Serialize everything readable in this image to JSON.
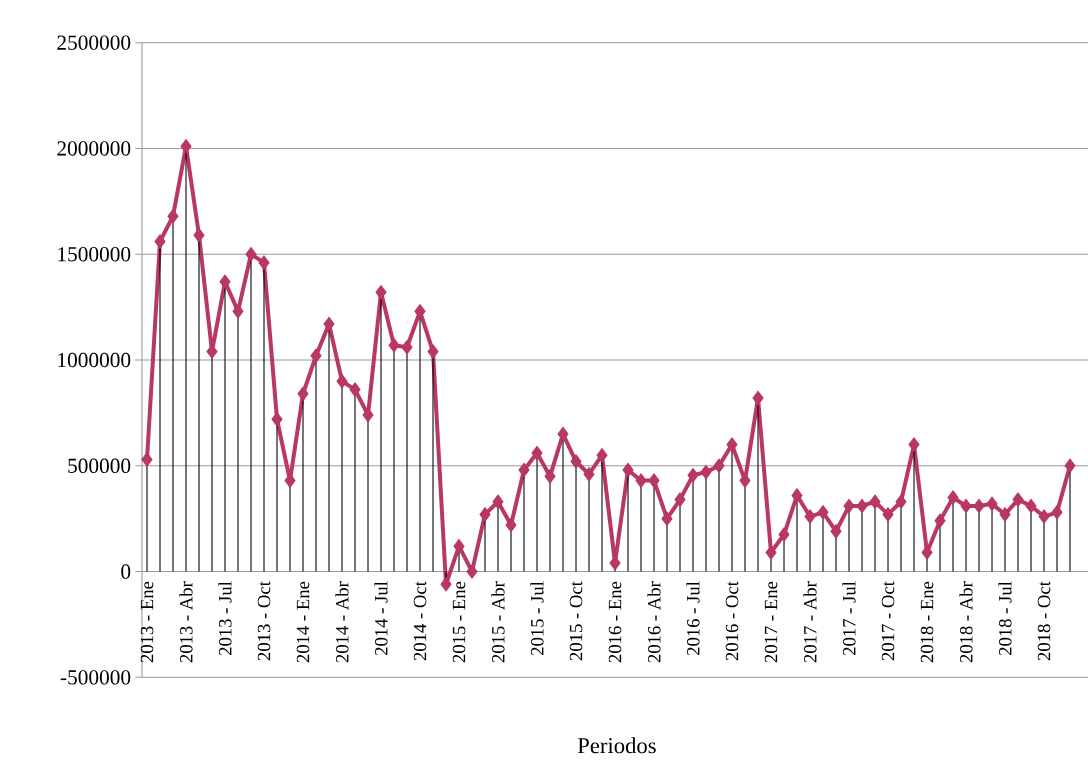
{
  "chart_data": {
    "type": "line",
    "xlabel": "Periodos",
    "categories": [
      "2013 - Ene",
      null,
      null,
      "2013 - Abr",
      null,
      null,
      "2013 - Jul",
      null,
      null,
      "2013 - Oct",
      null,
      null,
      "2014 - Ene",
      null,
      null,
      "2014 - Abr",
      null,
      null,
      "2014 - Jul",
      null,
      null,
      "2014 - Oct",
      null,
      null,
      "2015 - Ene",
      null,
      null,
      "2015 - Abr",
      null,
      null,
      "2015 - Jul",
      null,
      null,
      "2015 - Oct",
      null,
      null,
      "2016 - Ene",
      null,
      null,
      "2016 - Abr",
      null,
      null,
      "2016 - Jul",
      null,
      null,
      "2016 - Oct",
      null,
      null,
      "2017 - Ene",
      null,
      null,
      "2017 - Abr",
      null,
      null,
      "2017 - Jul",
      null,
      null,
      "2017 - Oct",
      null,
      null,
      "2018 - Ene",
      null,
      null,
      "2018 - Abr",
      null,
      null,
      "2018 - Jul",
      null,
      null,
      "2018 - Oct",
      null,
      null
    ],
    "series": [
      {
        "type": "lollipop",
        "marker": "diamond",
        "values": [
          530000,
          1560000,
          1680000,
          2010000,
          1590000,
          1040000,
          1370000,
          1230000,
          1500000,
          1460000,
          720000,
          430000,
          840000,
          1020000,
          1170000,
          900000,
          860000,
          740000,
          1320000,
          1070000,
          1060000,
          1230000,
          1040000,
          -60000,
          120000,
          0,
          270000,
          330000,
          220000,
          480000,
          560000,
          450000,
          650000,
          520000,
          460000,
          550000,
          40000,
          480000,
          430000,
          430000,
          250000,
          340000,
          455000,
          470000,
          500000,
          600000,
          430000,
          820000,
          90000,
          175000,
          360000,
          260000,
          280000,
          190000,
          310000,
          310000,
          330000,
          270000,
          330000,
          600000,
          90000,
          240000,
          350000,
          310000,
          310000,
          320000,
          270000,
          340000,
          310000,
          260000,
          280000,
          500000
        ]
      },
      {
        "values": [
          530000,
          1560000,
          1680000,
          2010000,
          1590000,
          1040000,
          1370000,
          1230000,
          1500000,
          1460000,
          720000,
          430000,
          840000,
          1020000,
          1170000,
          900000,
          860000,
          740000,
          1320000,
          1070000,
          1060000,
          1230000,
          1040000,
          -60000,
          120000,
          0,
          270000,
          330000,
          220000,
          480000,
          560000,
          450000,
          650000,
          520000,
          460000,
          550000,
          40000,
          480000,
          430000,
          430000,
          250000,
          340000,
          455000,
          470000,
          500000,
          600000,
          430000,
          820000,
          90000,
          175000,
          360000,
          260000,
          280000,
          190000,
          310000,
          310000,
          330000,
          270000,
          330000,
          600000,
          90000,
          240000,
          350000,
          310000,
          310000,
          320000,
          270000,
          340000,
          310000,
          260000,
          280000,
          500000
        ]
      }
    ],
    "grid": "y",
    "color": "#b83764",
    "ylim": [
      -500000,
      2500000
    ],
    "yticks": [
      -500000,
      0,
      500000,
      1000000,
      1500000,
      2000000,
      2500000
    ]
  }
}
